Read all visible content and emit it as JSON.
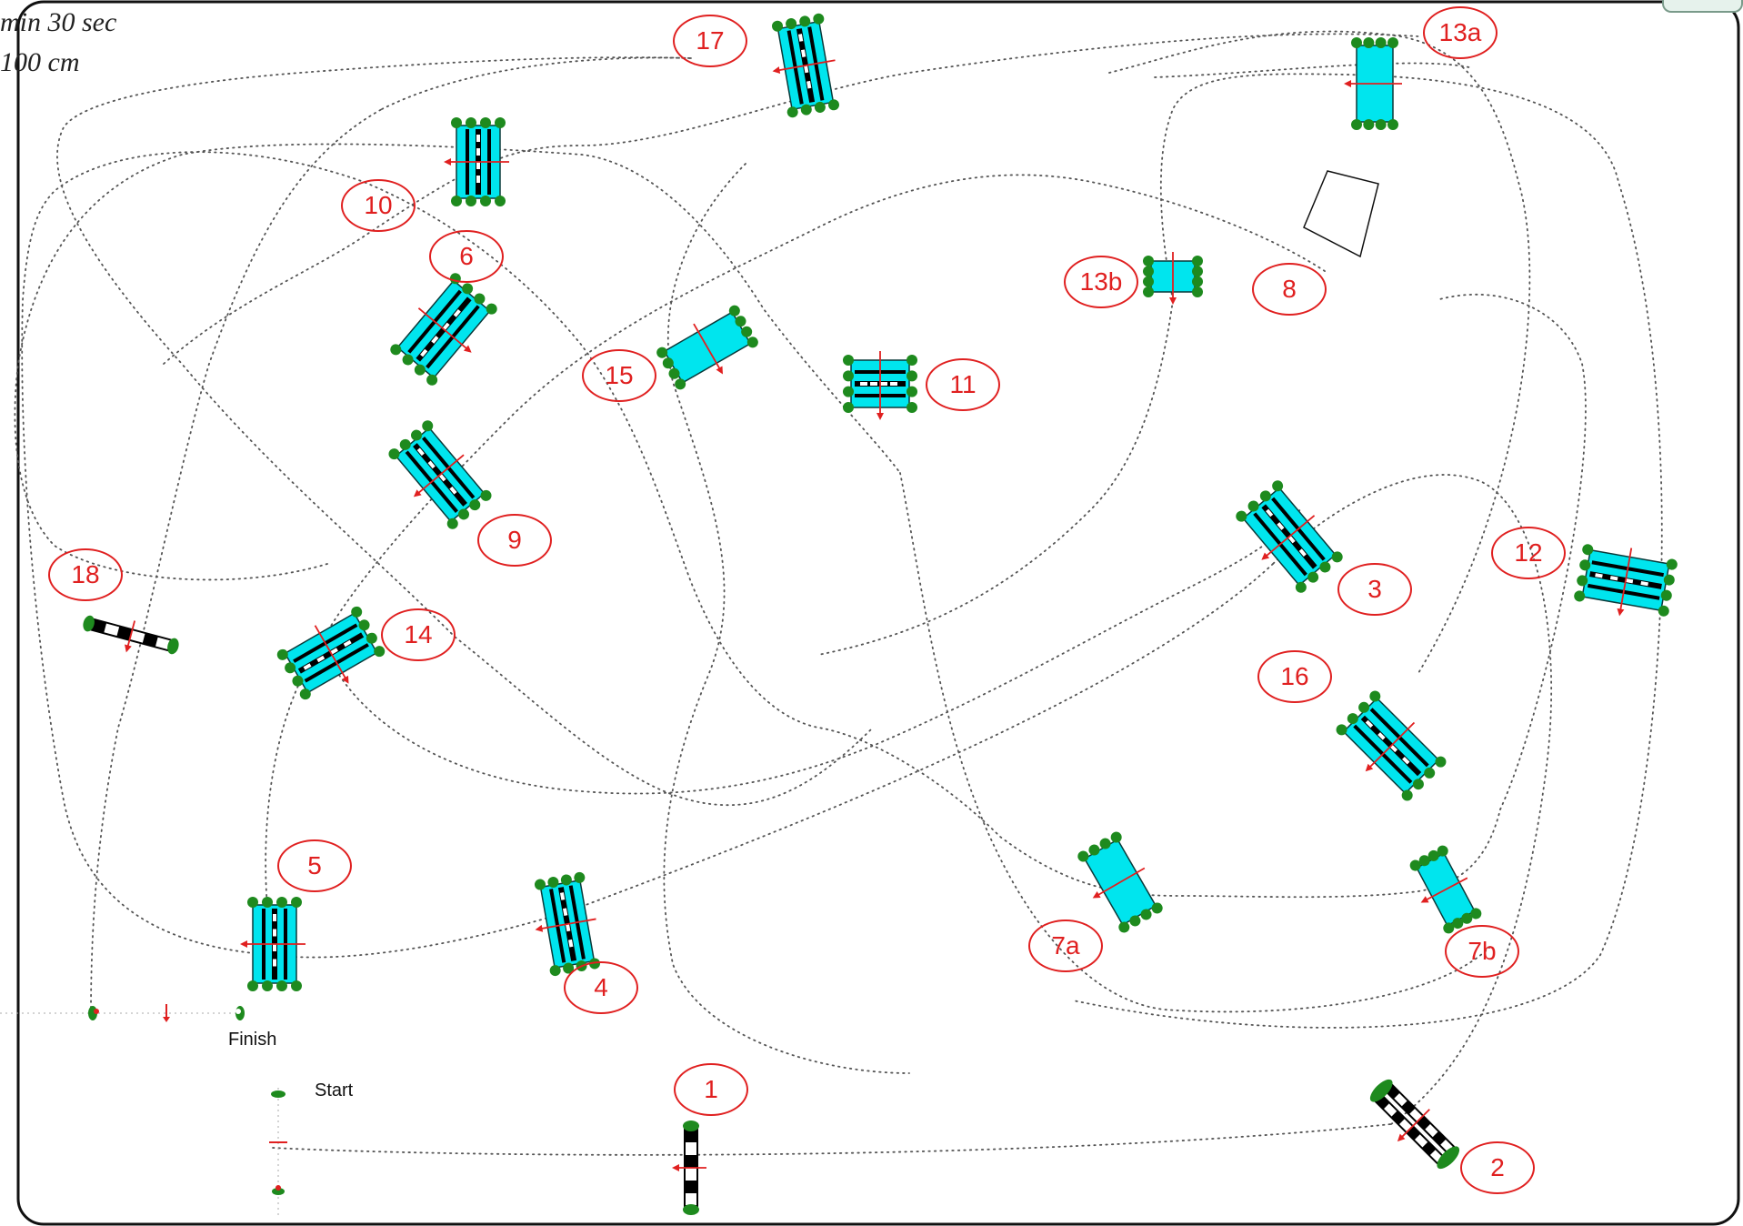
{
  "header": {
    "time_text": "min 30 sec",
    "distance_text": "100 cm"
  },
  "markers": [
    {
      "id": "m1",
      "label": "1"
    },
    {
      "id": "m2",
      "label": "2"
    },
    {
      "id": "m3",
      "label": "3"
    },
    {
      "id": "m4",
      "label": "4"
    },
    {
      "id": "m5",
      "label": "5"
    },
    {
      "id": "m6",
      "label": "6"
    },
    {
      "id": "m7a",
      "label": "7a"
    },
    {
      "id": "m7b",
      "label": "7b"
    },
    {
      "id": "m8",
      "label": "8"
    },
    {
      "id": "m9",
      "label": "9"
    },
    {
      "id": "m10",
      "label": "10"
    },
    {
      "id": "m11",
      "label": "11"
    },
    {
      "id": "m12",
      "label": "12"
    },
    {
      "id": "m13a",
      "label": "13a"
    },
    {
      "id": "m13b",
      "label": "13b"
    },
    {
      "id": "m14",
      "label": "14"
    },
    {
      "id": "m15",
      "label": "15"
    },
    {
      "id": "m16",
      "label": "16"
    },
    {
      "id": "m17",
      "label": "17"
    },
    {
      "id": "m18",
      "label": "18"
    }
  ],
  "labels": {
    "start": "Start",
    "finish": "Finish"
  },
  "colors": {
    "marker": "#e02020",
    "obstacle_fill": "#00e5ee",
    "pole_black": "#000000",
    "foliage": "#1e8a1e",
    "arrow": "#e02020",
    "path": "#555555",
    "border": "#111111"
  }
}
